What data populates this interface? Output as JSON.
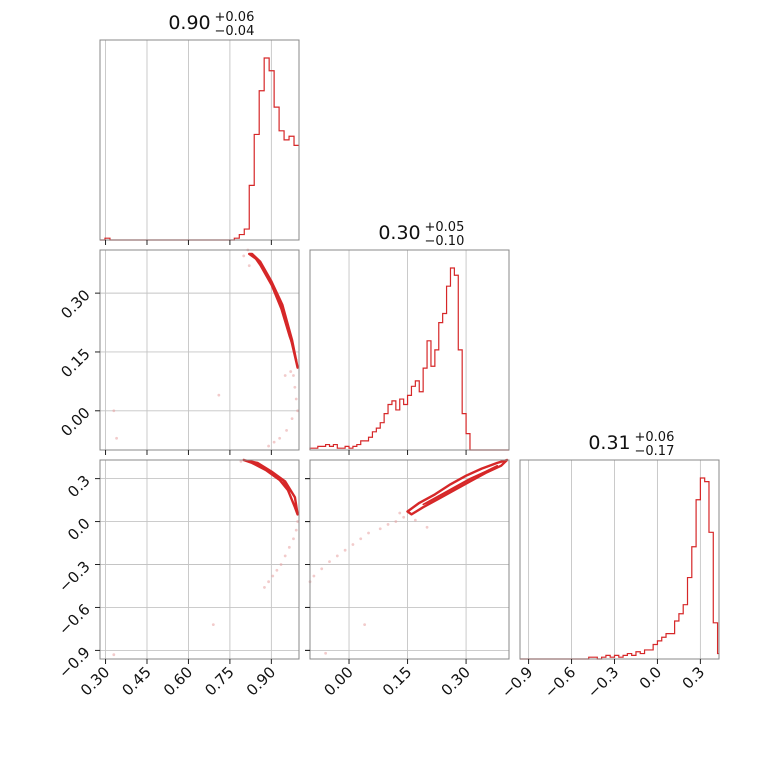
{
  "chart_data": {
    "type": "corner",
    "color": "#d62728",
    "params": [
      {
        "axis": [
          0.28,
          1.0
        ],
        "ticks": [
          0.3,
          0.45,
          0.6,
          0.75,
          0.9
        ],
        "tick_labels": [
          "0.30",
          "0.45",
          "0.60",
          "0.75",
          "0.90"
        ],
        "title": {
          "median": "0.90",
          "plus": "+0.06",
          "minus": "−0.04"
        }
      },
      {
        "axis": [
          -0.1,
          0.41
        ],
        "ticks": [
          0.0,
          0.15,
          0.3
        ],
        "tick_labels": [
          "0.00",
          "0.15",
          "0.30"
        ],
        "title": {
          "median": "0.30",
          "plus": "+0.05",
          "minus": "−0.10"
        }
      },
      {
        "axis": [
          -0.96,
          0.43
        ],
        "ticks": [
          -0.9,
          -0.6,
          -0.3,
          0.0,
          0.3
        ],
        "tick_labels": [
          "−0.9",
          "−0.6",
          "−0.3",
          "0.0",
          "0.3"
        ],
        "title": {
          "median": "0.31",
          "plus": "+0.06",
          "minus": "−0.17"
        }
      }
    ],
    "histograms": [
      {
        "param": 0,
        "bin_edges": [
          0.28,
          0.298,
          0.316,
          0.334,
          0.352,
          0.37,
          0.388,
          0.406,
          0.424,
          0.442,
          0.46,
          0.478,
          0.496,
          0.514,
          0.532,
          0.55,
          0.568,
          0.586,
          0.604,
          0.622,
          0.64,
          0.658,
          0.676,
          0.694,
          0.712,
          0.73,
          0.748,
          0.766,
          0.784,
          0.802,
          0.82,
          0.838,
          0.856,
          0.874,
          0.892,
          0.91,
          0.928,
          0.946,
          0.964,
          0.982,
          1.0
        ],
        "counts": [
          0,
          0.01,
          0,
          0,
          0,
          0,
          0,
          0,
          0,
          0,
          0,
          0,
          0,
          0,
          0,
          0,
          0,
          0,
          0,
          0,
          0,
          0,
          0,
          0,
          0,
          0,
          0,
          0.01,
          0.03,
          0.06,
          0.3,
          0.58,
          0.82,
          1.0,
          0.93,
          0.73,
          0.6,
          0.55,
          0.57,
          0.52
        ]
      },
      {
        "param": 1,
        "bin_edges": [
          -0.1,
          -0.09,
          -0.08,
          -0.07,
          -0.06,
          -0.05,
          -0.04,
          -0.03,
          -0.02,
          -0.01,
          0.0,
          0.01,
          0.02,
          0.03,
          0.04,
          0.05,
          0.06,
          0.07,
          0.08,
          0.09,
          0.1,
          0.11,
          0.12,
          0.13,
          0.14,
          0.15,
          0.16,
          0.17,
          0.18,
          0.19,
          0.2,
          0.21,
          0.22,
          0.23,
          0.24,
          0.25,
          0.26,
          0.27,
          0.28,
          0.29,
          0.3,
          0.31,
          0.32,
          0.33,
          0.34,
          0.35,
          0.36,
          0.37,
          0.38,
          0.39,
          0.4,
          0.41
        ],
        "counts": [
          0.01,
          0.01,
          0.02,
          0.02,
          0.03,
          0.02,
          0.03,
          0.01,
          0.01,
          0.02,
          0.01,
          0.02,
          0.03,
          0.05,
          0.05,
          0.07,
          0.1,
          0.12,
          0.15,
          0.2,
          0.25,
          0.27,
          0.22,
          0.28,
          0.25,
          0.3,
          0.35,
          0.38,
          0.32,
          0.45,
          0.6,
          0.46,
          0.55,
          0.7,
          0.75,
          0.9,
          1.0,
          0.96,
          0.55,
          0.2,
          0.09,
          0.0,
          0,
          0,
          0,
          0,
          0,
          0,
          0,
          0,
          0
        ]
      },
      {
        "param": 2,
        "bin_edges": [
          -0.96,
          -0.93,
          -0.9,
          -0.87,
          -0.84,
          -0.81,
          -0.78,
          -0.75,
          -0.72,
          -0.69,
          -0.66,
          -0.63,
          -0.6,
          -0.57,
          -0.54,
          -0.51,
          -0.48,
          -0.45,
          -0.42,
          -0.39,
          -0.36,
          -0.33,
          -0.3,
          -0.27,
          -0.24,
          -0.21,
          -0.18,
          -0.15,
          -0.12,
          -0.09,
          -0.06,
          -0.03,
          0.0,
          0.03,
          0.06,
          0.09,
          0.12,
          0.15,
          0.18,
          0.21,
          0.24,
          0.27,
          0.3,
          0.33,
          0.36,
          0.39,
          0.42,
          0.43
        ],
        "counts": [
          0,
          0,
          0,
          0,
          0,
          0,
          0,
          0,
          0,
          0,
          0,
          0,
          0,
          0,
          0,
          0,
          0.01,
          0.01,
          0,
          0.01,
          0.02,
          0.01,
          0.02,
          0.01,
          0.02,
          0.03,
          0.02,
          0.04,
          0.03,
          0.05,
          0.05,
          0.08,
          0.1,
          0.12,
          0.14,
          0.14,
          0.21,
          0.25,
          0.3,
          0.45,
          0.62,
          0.88,
          1.0,
          0.98,
          0.7,
          0.2,
          0.03
        ]
      }
    ],
    "pairs": [
      {
        "x_param": 0,
        "y_param": 1,
        "contours": [
          [
            [
              0.83,
              0.4
            ],
            [
              0.86,
              0.38
            ],
            [
              0.9,
              0.33
            ],
            [
              0.94,
              0.27
            ],
            [
              0.975,
              0.18
            ],
            [
              0.995,
              0.11
            ],
            [
              0.985,
              0.14
            ],
            [
              0.955,
              0.23
            ],
            [
              0.925,
              0.29
            ],
            [
              0.89,
              0.34
            ],
            [
              0.85,
              0.385
            ],
            [
              0.82,
              0.4
            ]
          ],
          [
            [
              0.84,
              0.39
            ],
            [
              0.88,
              0.35
            ],
            [
              0.92,
              0.29
            ],
            [
              0.955,
              0.22
            ],
            [
              0.98,
              0.16
            ],
            [
              0.965,
              0.19
            ],
            [
              0.935,
              0.26
            ],
            [
              0.9,
              0.32
            ],
            [
              0.86,
              0.37
            ]
          ]
        ],
        "points": [
          [
            0.815,
            0.41
          ],
          [
            0.8,
            0.395
          ],
          [
            0.82,
            0.37
          ],
          [
            0.985,
            0.06
          ],
          [
            0.99,
            0.03
          ],
          [
            0.975,
            -0.02
          ],
          [
            0.955,
            -0.05
          ],
          [
            0.93,
            -0.07
          ],
          [
            0.91,
            -0.08
          ],
          [
            0.89,
            -0.09
          ],
          [
            0.995,
            0.0
          ],
          [
            0.98,
            0.09
          ],
          [
            0.95,
            0.09
          ],
          [
            0.71,
            0.04
          ],
          [
            0.33,
            0.0
          ],
          [
            0.34,
            -0.07
          ],
          [
            0.99,
            0.13
          ],
          [
            0.97,
            0.1
          ]
        ]
      },
      {
        "x_param": 0,
        "y_param": 2,
        "contours": [
          [
            [
              0.8,
              0.43
            ],
            [
              0.85,
              0.41
            ],
            [
              0.9,
              0.35
            ],
            [
              0.95,
              0.28
            ],
            [
              0.985,
              0.17
            ],
            [
              0.995,
              0.05
            ],
            [
              0.985,
              0.1
            ],
            [
              0.96,
              0.22
            ],
            [
              0.93,
              0.29
            ],
            [
              0.88,
              0.36
            ],
            [
              0.83,
              0.41
            ]
          ],
          [
            [
              0.84,
              0.41
            ],
            [
              0.89,
              0.36
            ],
            [
              0.94,
              0.29
            ],
            [
              0.975,
              0.2
            ],
            [
              0.96,
              0.23
            ],
            [
              0.92,
              0.31
            ],
            [
              0.87,
              0.38
            ]
          ]
        ],
        "points": [
          [
            0.995,
            0.0
          ],
          [
            0.99,
            -0.06
          ],
          [
            0.98,
            -0.12
          ],
          [
            0.965,
            -0.18
          ],
          [
            0.95,
            -0.24
          ],
          [
            0.935,
            -0.3
          ],
          [
            0.92,
            -0.34
          ],
          [
            0.905,
            -0.38
          ],
          [
            0.89,
            -0.42
          ],
          [
            0.875,
            -0.46
          ],
          [
            0.69,
            -0.72
          ],
          [
            0.33,
            -0.93
          ],
          [
            0.8,
            0.43
          ],
          [
            0.79,
            0.42
          ]
        ]
      },
      {
        "x_param": 1,
        "y_param": 2,
        "contours": [
          [
            [
              0.15,
              0.07
            ],
            [
              0.18,
              0.13
            ],
            [
              0.22,
              0.19
            ],
            [
              0.26,
              0.26
            ],
            [
              0.3,
              0.32
            ],
            [
              0.34,
              0.37
            ],
            [
              0.38,
              0.41
            ],
            [
              0.405,
              0.43
            ],
            [
              0.39,
              0.39
            ],
            [
              0.35,
              0.34
            ],
            [
              0.31,
              0.28
            ],
            [
              0.27,
              0.22
            ],
            [
              0.23,
              0.16
            ],
            [
              0.19,
              0.1
            ],
            [
              0.16,
              0.05
            ]
          ],
          [
            [
              0.19,
              0.12
            ],
            [
              0.23,
              0.18
            ],
            [
              0.27,
              0.24
            ],
            [
              0.31,
              0.3
            ],
            [
              0.35,
              0.35
            ],
            [
              0.38,
              0.39
            ],
            [
              0.36,
              0.36
            ],
            [
              0.32,
              0.31
            ],
            [
              0.28,
              0.25
            ],
            [
              0.24,
              0.19
            ],
            [
              0.2,
              0.13
            ]
          ]
        ],
        "points": [
          [
            0.14,
            0.03
          ],
          [
            0.12,
            0.0
          ],
          [
            0.1,
            -0.02
          ],
          [
            0.08,
            -0.05
          ],
          [
            0.05,
            -0.08
          ],
          [
            0.03,
            -0.12
          ],
          [
            0.01,
            -0.16
          ],
          [
            -0.01,
            -0.2
          ],
          [
            -0.03,
            -0.24
          ],
          [
            -0.05,
            -0.28
          ],
          [
            -0.07,
            -0.33
          ],
          [
            -0.09,
            -0.38
          ],
          [
            -0.1,
            -0.42
          ],
          [
            0.04,
            -0.72
          ],
          [
            -0.06,
            -0.92
          ],
          [
            0.2,
            -0.04
          ],
          [
            0.13,
            0.06
          ],
          [
            0.17,
            0.01
          ]
        ]
      }
    ]
  }
}
